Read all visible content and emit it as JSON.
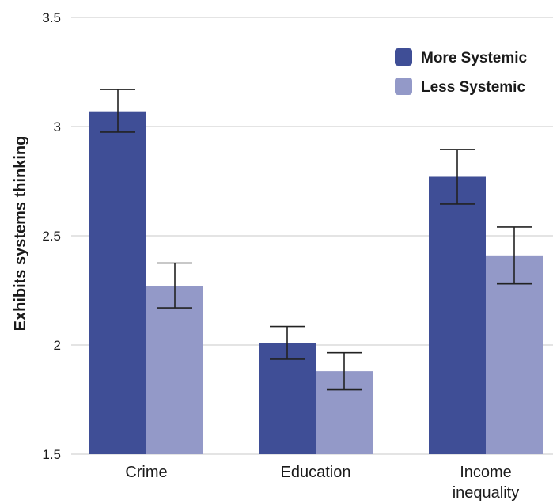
{
  "chart_data": {
    "type": "bar",
    "title": "",
    "xlabel": "",
    "ylabel": "Exhibits systems thinking",
    "ylim": [
      1.5,
      3.5
    ],
    "yticks": [
      "1.5",
      "2",
      "2.5",
      "3",
      "3.5"
    ],
    "grid": true,
    "legend_position": "top-right",
    "categories": [
      [
        "Crime"
      ],
      [
        "Education"
      ],
      [
        "Income",
        "inequality"
      ]
    ],
    "series": [
      {
        "name": "More Systemic",
        "color": "#3f4e96",
        "values": [
          3.07,
          2.01,
          2.77
        ],
        "error_low": [
          2.975,
          1.935,
          2.645
        ],
        "error_high": [
          3.17,
          2.085,
          2.895
        ]
      },
      {
        "name": "Less Systemic",
        "color": "#9399c8",
        "values": [
          2.27,
          1.88,
          2.41
        ],
        "error_low": [
          2.17,
          1.795,
          2.28
        ],
        "error_high": [
          2.375,
          1.965,
          2.54
        ]
      }
    ]
  }
}
